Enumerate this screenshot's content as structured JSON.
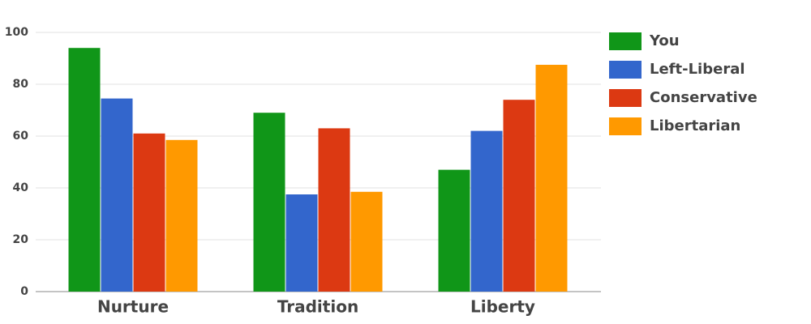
{
  "chart_data": {
    "type": "bar",
    "categories": [
      "Nurture",
      "Tradition",
      "Liberty"
    ],
    "series": [
      {
        "name": "You",
        "color": "#109618",
        "values": [
          94,
          69,
          47
        ]
      },
      {
        "name": "Left-Liberal",
        "color": "#3366cc",
        "values": [
          74.5,
          37.5,
          62
        ]
      },
      {
        "name": "Conservative",
        "color": "#dc3912",
        "values": [
          61,
          63,
          74
        ]
      },
      {
        "name": "Libertarian",
        "color": "#ff9900",
        "values": [
          58.5,
          38.5,
          87.5
        ]
      }
    ],
    "ylim": [
      0,
      100
    ],
    "yticks": [
      0,
      20,
      40,
      60,
      80,
      100
    ],
    "grid": true,
    "legend": "right"
  }
}
